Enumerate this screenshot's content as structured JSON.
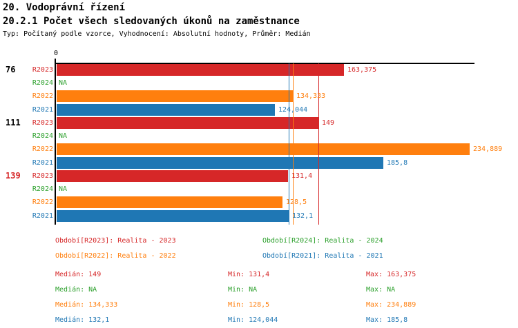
{
  "header": {
    "title": "20. Vodoprávní řízení",
    "subtitle": "20.2.1 Počet všech sledovaných úkonů na zaměstnance",
    "meta": "Typ: Počítaný podle vzorce, Vyhodnocení: Absolutní hodnoty, Průměr: Medián"
  },
  "chart_data": {
    "type": "bar",
    "orientation": "horizontal",
    "title": "20.2.1 Počet všech sledovaných úkonů na zaměstnance",
    "x_axis": {
      "origin_label": "0",
      "min": 0,
      "max_visible": 237.6,
      "gridlines": false
    },
    "series": [
      {
        "id": "R2023",
        "name": "Realita - 2023",
        "color": "#d62728"
      },
      {
        "id": "R2024",
        "name": "Realita - 2024",
        "color": "#2ca02c"
      },
      {
        "id": "R2022",
        "name": "Realita - 2022",
        "color": "#ff7f0e"
      },
      {
        "id": "R2021",
        "name": "Realita - 2021",
        "color": "#1f77b4"
      }
    ],
    "row_order": [
      "R2023",
      "R2024",
      "R2022",
      "R2021"
    ],
    "groups": [
      {
        "label": "76",
        "label_color": "#000000",
        "values": {
          "R2023": 163.375,
          "R2024": null,
          "R2022": 134.333,
          "R2021": 124.044
        },
        "displays": {
          "R2023": "163,375",
          "R2024": "NA",
          "R2022": "134,333",
          "R2021": "124,044"
        }
      },
      {
        "label": "111",
        "label_color": "#000000",
        "values": {
          "R2023": 149,
          "R2024": null,
          "R2022": 234.889,
          "R2021": 185.8
        },
        "displays": {
          "R2023": "149",
          "R2024": "NA",
          "R2022": "234,889",
          "R2021": "185,8"
        }
      },
      {
        "label": "139",
        "label_color": "#d62728",
        "values": {
          "R2023": 131.4,
          "R2024": null,
          "R2022": 128.5,
          "R2021": 132.1
        },
        "displays": {
          "R2023": "131,4",
          "R2024": "NA",
          "R2022": "128,5",
          "R2021": "132,1"
        }
      }
    ],
    "median_lines": [
      {
        "series": "R2023",
        "value": 149,
        "color": "#d62728"
      },
      {
        "series": "R2022",
        "value": 134.333,
        "color": "#ff7f0e"
      },
      {
        "series": "R2021",
        "value": 132.1,
        "color": "#1f77b4"
      }
    ]
  },
  "legend": {
    "items": [
      {
        "label": "Období[R2023]: Realita - 2023",
        "color": "#d62728"
      },
      {
        "label": "Období[R2024]: Realita - 2024",
        "color": "#2ca02c"
      },
      {
        "label": "Období[R2022]: Realita - 2022",
        "color": "#ff7f0e"
      },
      {
        "label": "Období[R2021]: Realita - 2021",
        "color": "#1f77b4"
      }
    ]
  },
  "stats": {
    "rows": [
      {
        "color": "#d62728",
        "median": "Medián: 149",
        "min": "Min: 131,4",
        "max": "Max: 163,375"
      },
      {
        "color": "#2ca02c",
        "median": "Medián: NA",
        "min": "Min: NA",
        "max": "Max: NA"
      },
      {
        "color": "#ff7f0e",
        "median": "Medián: 134,333",
        "min": "Min: 128,5",
        "max": "Max: 234,889"
      },
      {
        "color": "#1f77b4",
        "median": "Medián: 132,1",
        "min": "Min: 124,044",
        "max": "Max: 185,8"
      }
    ]
  }
}
